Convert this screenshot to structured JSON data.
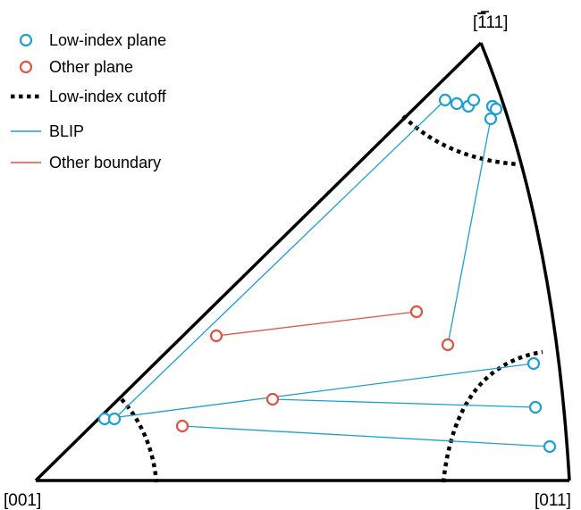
{
  "colors": {
    "low_index": "#1f9fd0",
    "other": "#e0533e",
    "outline": "#000000"
  },
  "corners": {
    "top_right": "[̅1̅11]",
    "top_right_parts": [
      "[",
      "1",
      "11]"
    ],
    "bottom_left": "[001]",
    "bottom_right": "[011]"
  },
  "legend": {
    "low_index_plane": "Low-index plane",
    "other_plane": "Other plane",
    "cutoff": "Low-index cutoff",
    "blip": "BLIP",
    "other_boundary": "Other boundary"
  },
  "chart_data": {
    "type": "scatter",
    "description_of_axes": "",
    "low_index_planes": [
      [
        498,
        112
      ],
      [
        511,
        116
      ],
      [
        524,
        119
      ],
      [
        530,
        112
      ],
      [
        551,
        119
      ],
      [
        555,
        122
      ],
      [
        549,
        133
      ],
      [
        117,
        469
      ],
      [
        128,
        469
      ],
      [
        597,
        407
      ],
      [
        599,
        456
      ],
      [
        615,
        500
      ]
    ],
    "other_planes": [
      [
        466,
        349
      ],
      [
        242,
        376
      ],
      [
        501,
        386
      ],
      [
        305,
        447
      ],
      [
        204,
        477
      ]
    ],
    "blip_links": [
      [
        [
          498,
          112
        ],
        [
          128,
          469
        ]
      ],
      [
        [
          549,
          133
        ],
        [
          501,
          386
        ]
      ],
      [
        [
          117,
          469
        ],
        [
          597,
          407
        ]
      ],
      [
        [
          305,
          447
        ],
        [
          599,
          456
        ]
      ],
      [
        [
          204,
          477
        ],
        [
          615,
          500
        ]
      ]
    ],
    "other_links": [
      [
        [
          242,
          376
        ],
        [
          466,
          349
        ]
      ]
    ]
  }
}
